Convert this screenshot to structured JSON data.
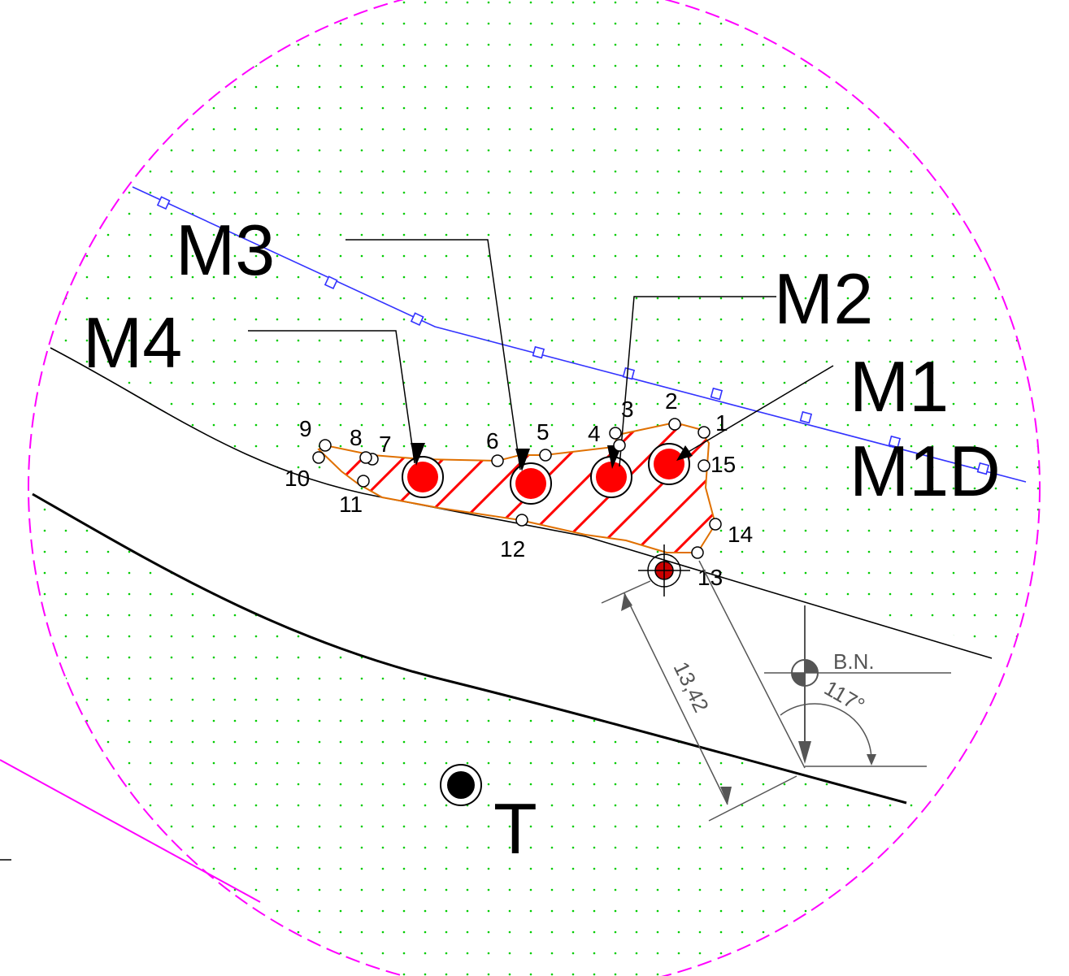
{
  "labels": {
    "m1": "M1",
    "m1d": "M1D",
    "m2": "M2",
    "m3": "M3",
    "m4": "M4",
    "t": "T",
    "bn": "B.N.",
    "distance": "13,42",
    "angle": "117°"
  },
  "points": [
    "1",
    "2",
    "3",
    "4",
    "5",
    "6",
    "7",
    "8",
    "9",
    "10",
    "11",
    "12",
    "13",
    "14",
    "15"
  ],
  "colors": {
    "boundary_circle": "#ff00ff",
    "fence": "#3333ff",
    "area_outline": "#e07000",
    "hatch": "#ff0000",
    "marker_fill": "#ff0000",
    "grid_dots": "#00cc00",
    "dimension": "#555555"
  },
  "icons": {
    "north_mark": "quarter-filled-circle-icon",
    "reference": "crosshair-target-icon"
  }
}
